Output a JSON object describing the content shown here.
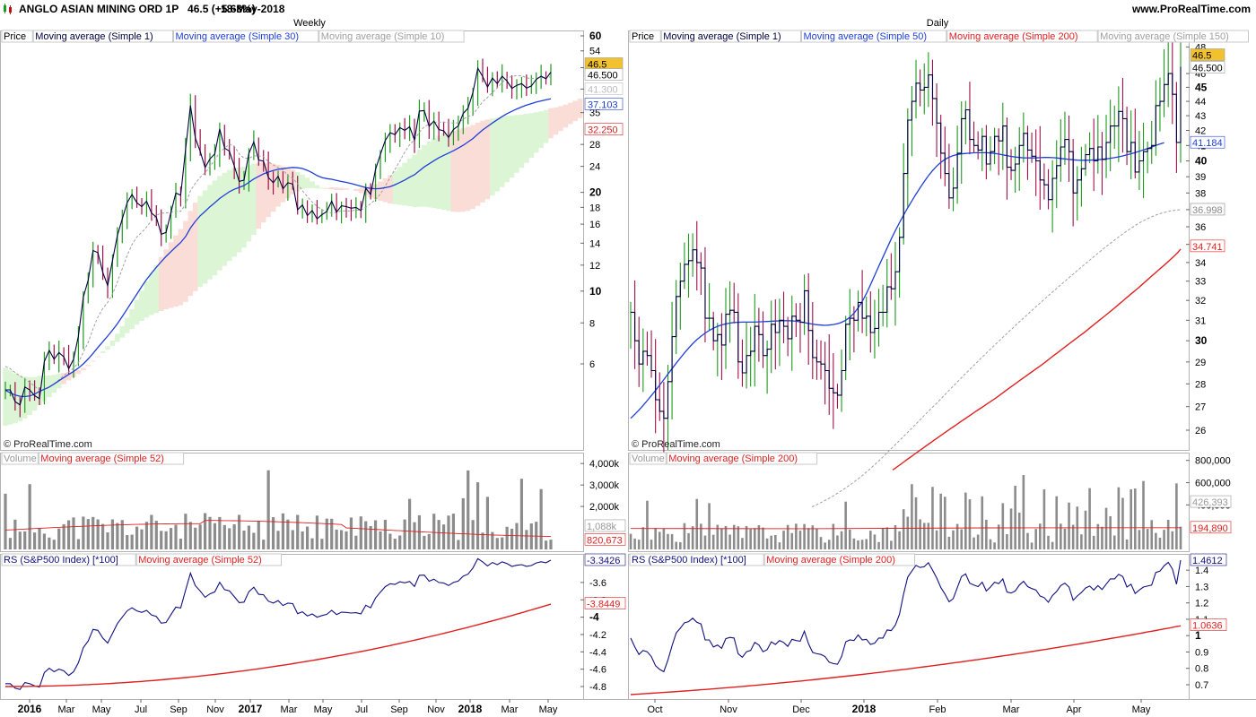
{
  "header": {
    "title": "ANGLO ASIAN MINING ORD 1P   46.5 (+5.68%)",
    "date": "18-May-2018",
    "site": "www.ProRealTime.com"
  },
  "watermark": "© ProRealTime.com",
  "colors": {
    "up_bar": "#1e9a1e",
    "down_bar": "#a0104a",
    "price_line": "#000040",
    "ma_blue": "#1f3fd6",
    "ma_red": "#e02020",
    "ma_grey": "#a0a0a0",
    "rs_line": "#101080",
    "volume_bar": "#8c8c8c",
    "cloud_green": "#d8f5d0",
    "cloud_red": "#fbd9d4",
    "price_tag": "#f2c12e"
  },
  "chart_data": [
    {
      "type": "line",
      "panel": "weekly-price",
      "title": "Weekly",
      "legend": [
        "Price",
        "Moving average (Simple 1)",
        "Moving average (Simple 30)",
        "Moving average (Simple 10)"
      ],
      "scale": "log",
      "y_ticks": [
        "60",
        "54",
        "48",
        "41",
        "35",
        "28",
        "24",
        "20",
        "18",
        "16",
        "14",
        "12",
        "10",
        "8",
        "6"
      ],
      "bold_ticks": [
        "60",
        "20",
        "10"
      ],
      "last_price_tag": "46.5",
      "value_tags": [
        "46.500",
        "41.300",
        "37.103",
        "32.250"
      ],
      "x_labels": [
        "2016",
        "Mar",
        "May",
        "Jul",
        "Sep",
        "Nov",
        "2017",
        "Mar",
        "May",
        "Jul",
        "Sep",
        "Nov",
        "2018",
        "Mar",
        "May"
      ],
      "series": [
        {
          "name": "Moving average (Simple 1)",
          "values": [
            5.0,
            5.0,
            4.6,
            4.5,
            5.1,
            5.0,
            4.8,
            4.7,
            6.1,
            6.6,
            6.2,
            6.5,
            6.3,
            5.8,
            6.2,
            7.3,
            9.6,
            10.8,
            13.3,
            13.1,
            11.4,
            10.4,
            12.4,
            14.8,
            16.6,
            18.6,
            19.7,
            18.6,
            18.1,
            18.8,
            17.3,
            16.8,
            14.9,
            15.1,
            17.4,
            19.9,
            19.6,
            27.1,
            36.8,
            29.3,
            26.7,
            23.8,
            25.3,
            26.2,
            31.2,
            27.3,
            26.7,
            24.1,
            21.6,
            21.8,
            26.3,
            28.5,
            25.1,
            24.9,
            22.2,
            21.4,
            22.4,
            20.5,
            21.4,
            21.2,
            17.7,
            18.3,
            17.0,
            17.6,
            16.6,
            17.1,
            17.5,
            18.8,
            17.4,
            18.2,
            18.1,
            17.9,
            18.0,
            17.6,
            20.6,
            19.7,
            23.5,
            26.1,
            28.8,
            30.4,
            30.0,
            31.5,
            30.9,
            31.7,
            28.9,
            35.4,
            35.5,
            31.8,
            33.0,
            31.1,
            30.8,
            29.4,
            31.1,
            31.9,
            34.8,
            36.1,
            40.3,
            47.8,
            45.1,
            41.9,
            44.6,
            42.9,
            45.2,
            43.7,
            41.5,
            42.4,
            42.9,
            41.6,
            42.2,
            44.2,
            45.2,
            44.4,
            46.5
          ]
        },
        {
          "name": "Moving average (Simple 30)",
          "values": [
            4.98,
            4.9,
            4.82,
            4.78,
            4.77,
            4.79,
            4.85,
            4.95,
            5.02,
            5.1,
            5.21,
            5.33,
            5.45,
            5.57,
            5.69,
            5.83,
            6.0,
            6.21,
            6.46,
            6.73,
            7.01,
            7.29,
            7.6,
            7.96,
            8.37,
            8.82,
            9.29,
            9.8,
            10.33,
            10.86,
            11.34,
            11.82,
            12.29,
            12.76,
            13.2,
            13.64,
            14.06,
            14.67,
            15.57,
            16.31,
            16.96,
            17.5,
            18.08,
            18.6,
            19.17,
            19.63,
            20.09,
            20.43,
            20.71,
            20.98,
            21.45,
            21.97,
            22.37,
            22.77,
            23.06,
            23.31,
            23.52,
            23.62,
            23.74,
            23.83,
            23.76,
            23.64,
            23.34,
            22.96,
            22.5,
            22.19,
            22.03,
            21.93,
            21.75,
            21.59,
            21.45,
            21.29,
            21.09,
            20.88,
            20.68,
            20.57,
            20.51,
            20.55,
            20.67,
            20.83,
            21.1,
            21.44,
            21.81,
            22.25,
            22.63,
            23.26,
            23.91,
            24.43,
            24.97,
            25.48,
            25.94,
            26.35,
            26.79,
            27.29,
            27.84,
            28.48,
            29.18,
            30.1,
            31.0,
            31.77,
            32.55,
            33.29,
            34.03,
            34.75,
            35.32,
            35.91,
            36.42,
            36.9,
            37.3,
            37.7,
            37.99,
            38.29,
            38.56
          ]
        },
        {
          "name": "Moving average (Simple 10)",
          "values": [
            5.9,
            5.8,
            5.64,
            5.51,
            5.39,
            5.27,
            5.13,
            4.98,
            5.0,
            5.09,
            5.21,
            5.36,
            5.53,
            5.67,
            5.82,
            6.05,
            6.51,
            6.98,
            7.68,
            8.33,
            8.85,
            9.24,
            9.78,
            10.66,
            11.71,
            12.84,
            13.85,
            14.63,
            15.11,
            15.68,
            16.39,
            17.03,
            17.28,
            17.31,
            17.39,
            17.52,
            17.51,
            18.36,
            20.23,
            21.3,
            22.24,
            22.94,
            23.99,
            25.1,
            26.48,
            27.3,
            28.0,
            27.7,
            26.18,
            25.43,
            25.39,
            25.86,
            25.83,
            25.7,
            24.81,
            24.23,
            23.8,
            23.44,
            22.46,
            22.1,
            21.24,
            20.23,
            19.42,
            18.69,
            18.13,
            17.7,
            17.44,
            17.3,
            17.38,
            17.58,
            17.55,
            17.56,
            17.66,
            17.65,
            18.03,
            18.46,
            19.03,
            19.76,
            20.9,
            22.19,
            23.52,
            24.9,
            26.52,
            27.93,
            28.92,
            30.49,
            31.69,
            32.26,
            32.67,
            32.75,
            32.76,
            32.55,
            32.53,
            32.6,
            33.42,
            34.09,
            34.49,
            36.09,
            37.8,
            38.95,
            40.31,
            41.66,
            43.31,
            44.5,
            45.14,
            45.37,
            45.34,
            44.71,
            44.44,
            44.67,
            44.73,
            44.88,
            45.01
          ]
        }
      ]
    },
    {
      "type": "bar",
      "panel": "weekly-volume",
      "legend": [
        "Volume",
        "Moving average (Simple 52)"
      ],
      "y_ticks": [
        "4,000k",
        "3,000k",
        "2,000k"
      ],
      "value_tags": [
        "1,088k",
        "820,673"
      ]
    },
    {
      "type": "line",
      "panel": "weekly-rs",
      "legend": [
        "RS (S&P500 Index) [*100]",
        "Moving average (Simple 52)"
      ],
      "y_ticks": [
        "-3.6",
        "-3.8",
        "-4",
        "-4.2",
        "-4.4",
        "-4.6",
        "-4.8"
      ],
      "bold_ticks": [
        "-4"
      ],
      "value_tags": [
        "-3.3426",
        "-3.8449"
      ]
    },
    {
      "type": "line",
      "panel": "daily-price",
      "title": "Daily",
      "legend": [
        "Price",
        "Moving average (Simple 1)",
        "Moving average (Simple 50)",
        "Moving average (Simple 200)",
        "Moving average (Simple 150)"
      ],
      "scale": "log",
      "y_ticks": [
        "49",
        "48",
        "46",
        "45",
        "44",
        "43",
        "42",
        "41",
        "40",
        "39",
        "38",
        "37",
        "36",
        "35",
        "34",
        "33",
        "32",
        "31",
        "30",
        "29",
        "28",
        "27",
        "26"
      ],
      "bold_ticks": [
        "45",
        "40",
        "35",
        "30"
      ],
      "last_price_tag": "46.5",
      "value_tags": [
        "46.500",
        "41.184",
        "36.998",
        "34.741"
      ],
      "x_labels": [
        "Oct",
        "Nov",
        "Dec",
        "2018",
        "Feb",
        "Mar",
        "Apr",
        "May"
      ],
      "series": [
        {
          "name": "Moving average (Simple 1)",
          "values": [
            31.4,
            30.0,
            28.9,
            29.5,
            29.3,
            28.6,
            27.3,
            26.8,
            26.5,
            28.1,
            30.2,
            32.2,
            33.0,
            33.9,
            34.1,
            34.7,
            34.0,
            33.7,
            31.1,
            31.1,
            30.0,
            30.3,
            29.8,
            31.3,
            31.5,
            31.4,
            29.0,
            28.5,
            29.3,
            29.5,
            30.7,
            30.3,
            29.3,
            29.6,
            30.8,
            30.4,
            31.0,
            30.7,
            30.1,
            31.2,
            31.0,
            30.9,
            32.5,
            30.5,
            29.2,
            29.0,
            28.9,
            28.6,
            27.8,
            27.6,
            27.5,
            28.6,
            30.8,
            31.1,
            31.0,
            31.9,
            31.1,
            31.2,
            30.4,
            30.6,
            31.4,
            31.4,
            32.7,
            32.6,
            33.5,
            35.4,
            39.2,
            42.7,
            44.0,
            45.3,
            44.8,
            45.0,
            45.9,
            44.2,
            42.5,
            40.5,
            39.2,
            37.7,
            38.3,
            40.5,
            42.8,
            43.4,
            41.4,
            41.0,
            40.7,
            41.6,
            39.8,
            40.6,
            41.6,
            41.3,
            42.3,
            39.6,
            39.4,
            39.8,
            41.0,
            41.8,
            40.7,
            40.3,
            40.0,
            38.8,
            38.5,
            37.6,
            38.9,
            39.7,
            40.9,
            41.4,
            40.6,
            38.0,
            38.8,
            39.5,
            40.4,
            40.8,
            40.0,
            40.9,
            40.1,
            41.2,
            42.3,
            42.3,
            43.3,
            42.8,
            40.6,
            41.2,
            39.3,
            40.0,
            40.6,
            40.8,
            41.0,
            43.7,
            44.0,
            45.2,
            46.0,
            44.5,
            41.2,
            46.5
          ]
        },
        {
          "name": "Moving average (Simple 50)",
          "values": [
            26.5,
            26.67,
            26.85,
            27.05,
            27.26,
            27.48,
            27.71,
            27.95,
            28.19,
            28.44,
            28.69,
            28.94,
            29.18,
            29.42,
            29.65,
            29.86,
            30.05,
            30.22,
            30.37,
            30.5,
            30.61,
            30.7,
            30.77,
            30.82,
            30.86,
            30.89,
            30.9,
            30.91,
            30.91,
            30.91,
            30.91,
            30.92,
            30.93,
            30.94,
            30.95,
            30.96,
            30.97,
            30.98,
            30.98,
            30.97,
            30.95,
            30.92,
            30.88,
            30.84,
            30.81,
            30.78,
            30.76,
            30.75,
            30.76,
            30.79,
            30.83,
            30.9,
            31.0,
            31.15,
            31.35,
            31.62,
            31.95,
            32.35,
            32.81,
            33.3,
            33.8,
            34.3,
            34.8,
            35.3,
            35.78,
            36.24,
            36.68,
            37.11,
            37.52,
            37.93,
            38.32,
            38.7,
            39.06,
            39.39,
            39.67,
            39.91,
            40.1,
            40.24,
            40.34,
            40.41,
            40.45,
            40.48,
            40.5,
            40.52,
            40.53,
            40.53,
            40.53,
            40.51,
            40.48,
            40.44,
            40.39,
            40.34,
            40.29,
            40.25,
            40.22,
            40.2,
            40.19,
            40.19,
            40.2,
            40.21,
            40.22,
            40.22,
            40.21,
            40.19,
            40.16,
            40.13,
            40.1,
            40.07,
            40.05,
            40.04,
            40.04,
            40.05,
            40.06,
            40.08,
            40.1,
            40.13,
            40.17,
            40.21,
            40.26,
            40.32,
            40.39,
            40.46,
            40.54,
            40.62,
            40.71,
            40.8,
            40.9,
            41.0,
            41.1,
            41.184
          ]
        },
        {
          "name": "Moving average (Simple 150)",
          "values": [
            23.0,
            23.06,
            23.13,
            23.2,
            23.27,
            23.35,
            23.43,
            23.52,
            23.61,
            23.7,
            23.8,
            23.9,
            24.01,
            24.12,
            24.24,
            24.36,
            24.49,
            24.62,
            24.76,
            24.9,
            25.05,
            25.2,
            25.35,
            25.5,
            25.65,
            25.8,
            25.96,
            26.11,
            26.27,
            26.43,
            26.59,
            26.75,
            26.91,
            27.07,
            27.23,
            27.4,
            27.57,
            27.74,
            27.91,
            28.08,
            28.25,
            28.42,
            28.59,
            28.76,
            28.93,
            29.1,
            29.27,
            29.44,
            29.61,
            29.78,
            29.95,
            30.12,
            30.29,
            30.46,
            30.63,
            30.8,
            30.97,
            31.14,
            31.31,
            31.48,
            31.65,
            31.82,
            31.99,
            32.16,
            32.33,
            32.5,
            32.67,
            32.84,
            33.01,
            33.18,
            33.35,
            33.52,
            33.69,
            33.86,
            34.03,
            34.2,
            34.37,
            34.54,
            34.71,
            34.88,
            35.04,
            35.2,
            35.36,
            35.52,
            35.67,
            35.82,
            35.96,
            36.1,
            36.23,
            36.35,
            36.46,
            36.56,
            36.65,
            36.73,
            36.8,
            36.86,
            36.91,
            36.95,
            36.98,
            36.998
          ]
        },
        {
          "name": "Moving average (Simple 200)",
          "values": [
            24.4,
            24.47,
            24.55,
            24.63,
            24.71,
            24.79,
            24.87,
            24.95,
            25.03,
            25.11,
            25.19,
            25.27,
            25.35,
            25.43,
            25.51,
            25.59,
            25.67,
            25.75,
            25.83,
            25.91,
            25.99,
            26.07,
            26.15,
            26.23,
            26.31,
            26.39,
            26.47,
            26.55,
            26.63,
            26.71,
            26.79,
            26.87,
            26.95,
            27.03,
            27.11,
            27.19,
            27.27,
            27.35,
            27.44,
            27.53,
            27.62,
            27.71,
            27.8,
            27.89,
            27.98,
            28.07,
            28.16,
            28.25,
            28.34,
            28.43,
            28.52,
            28.61,
            28.7,
            28.79,
            28.88,
            28.98,
            29.08,
            29.18,
            29.28,
            29.38,
            29.48,
            29.58,
            29.68,
            29.78,
            29.88,
            29.98,
            30.08,
            30.18,
            30.28,
            30.38,
            30.49,
            30.6,
            30.71,
            30.82,
            30.93,
            31.04,
            31.15,
            31.26,
            31.37,
            31.48,
            31.6,
            31.72,
            31.84,
            31.96,
            32.08,
            32.2,
            32.32,
            32.44,
            32.56,
            32.68,
            32.81,
            32.94,
            33.07,
            33.2,
            33.33,
            33.46,
            33.59,
            33.72,
            33.85,
            33.98,
            34.12,
            34.26,
            34.4,
            34.55,
            34.741
          ]
        }
      ]
    },
    {
      "type": "bar",
      "panel": "daily-volume",
      "legend": [
        "Volume",
        "Moving average (Simple 200)"
      ],
      "y_ticks": [
        "800,000",
        "600,000",
        "400,000"
      ],
      "value_tags": [
        "426,393",
        "194,890"
      ]
    },
    {
      "type": "line",
      "panel": "daily-rs",
      "legend": [
        "RS (S&P500 Index) [*100]",
        "Moving average (Simple 200)"
      ],
      "y_ticks": [
        "1.4",
        "1.3",
        "1.2",
        "1.1",
        "1",
        "0.9",
        "0.8",
        "0.7"
      ],
      "bold_ticks": [
        "1"
      ],
      "value_tags": [
        "1.4612",
        "1.0636"
      ],
      "x_labels": [
        "Oct",
        "Nov",
        "Dec",
        "2018",
        "Feb",
        "Mar",
        "Apr",
        "May"
      ]
    }
  ]
}
